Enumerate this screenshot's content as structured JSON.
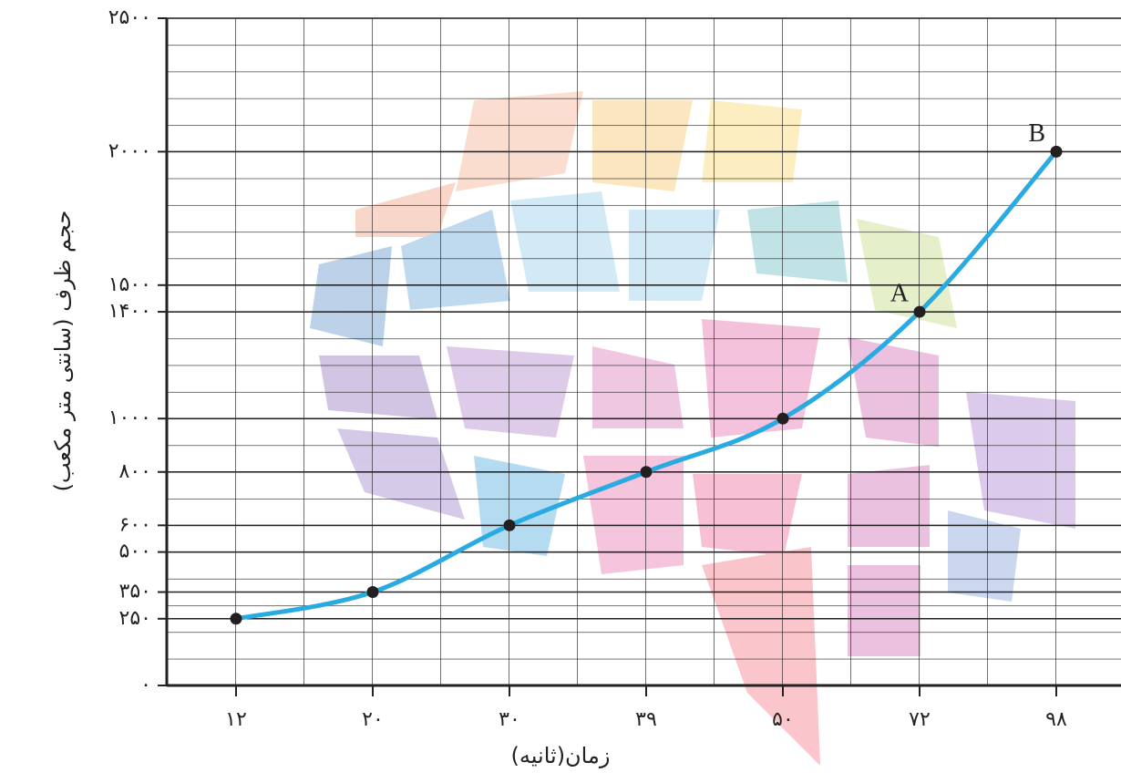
{
  "chart_data": {
    "type": "line",
    "ylabel": "حجم ظرف (سانتی متر مکعب)",
    "xlabel": "زمان(ثانیه)",
    "categories": [
      "۱۲",
      "۲۰",
      "۳۰",
      "۳۹",
      "۵۰",
      "۷۲",
      "۹۸"
    ],
    "series": [
      {
        "color": "#29abe2",
        "values": [
          250,
          350,
          600,
          800,
          1000,
          1400,
          2000
        ]
      }
    ],
    "ylim": [
      0,
      2500
    ],
    "yticks": [
      {
        "value": 0,
        "label": "۰"
      },
      {
        "value": 250,
        "label": "۲۵۰"
      },
      {
        "value": 350,
        "label": "۳۵۰"
      },
      {
        "value": 500,
        "label": "۵۰۰"
      },
      {
        "value": 600,
        "label": "۶۰۰"
      },
      {
        "value": 800,
        "label": "۸۰۰"
      },
      {
        "value": 1000,
        "label": "۱۰۰۰"
      },
      {
        "value": 1400,
        "label": "۱۴۰۰"
      },
      {
        "value": 1500,
        "label": "۱۵۰۰"
      },
      {
        "value": 2000,
        "label": "۲۰۰۰"
      },
      {
        "value": 2500,
        "label": "۲۵۰۰"
      }
    ],
    "annotations": [
      {
        "text": "A",
        "category": "۷۲"
      },
      {
        "text": "B",
        "category": "۹۸"
      }
    ],
    "grid": true
  }
}
